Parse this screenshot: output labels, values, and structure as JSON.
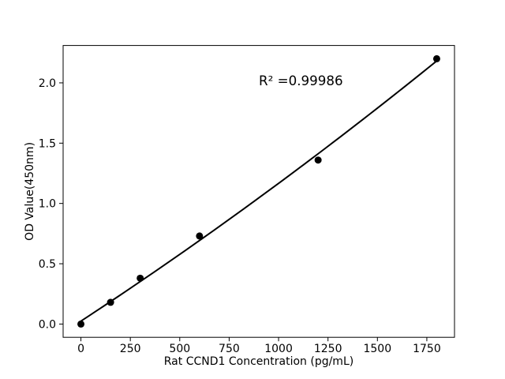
{
  "figure": {
    "background_color": "#ffffff",
    "foreground_color": "#000000"
  },
  "chart_data": {
    "type": "scatter",
    "title": "",
    "xlabel": "Rat CCND1 Concentration (pg/mL)",
    "ylabel": "OD Value(450nm)",
    "annotation": "R² =0.99986",
    "r_squared": 0.99986,
    "x": [
      0,
      150,
      300,
      600,
      1200,
      1800
    ],
    "y": [
      0.0,
      0.18,
      0.38,
      0.73,
      1.36,
      2.2
    ],
    "fit": {
      "type": "quadratic",
      "range": [
        0,
        1800
      ]
    },
    "xticks": [
      0,
      250,
      500,
      750,
      1000,
      1250,
      1500,
      1750
    ],
    "xtick_labels": [
      "0",
      "250",
      "500",
      "750",
      "1000",
      "1250",
      "1500",
      "1750"
    ],
    "yticks": [
      0.0,
      0.5,
      1.0,
      1.5,
      2.0
    ],
    "ytick_labels": [
      "0.0",
      "0.5",
      "1.0",
      "1.5",
      "2.0"
    ],
    "xlim": [
      -90,
      1890
    ],
    "ylim": [
      -0.11,
      2.31
    ],
    "grid": false,
    "legend": "none",
    "marker_color": "#000000",
    "line_color": "#000000"
  }
}
